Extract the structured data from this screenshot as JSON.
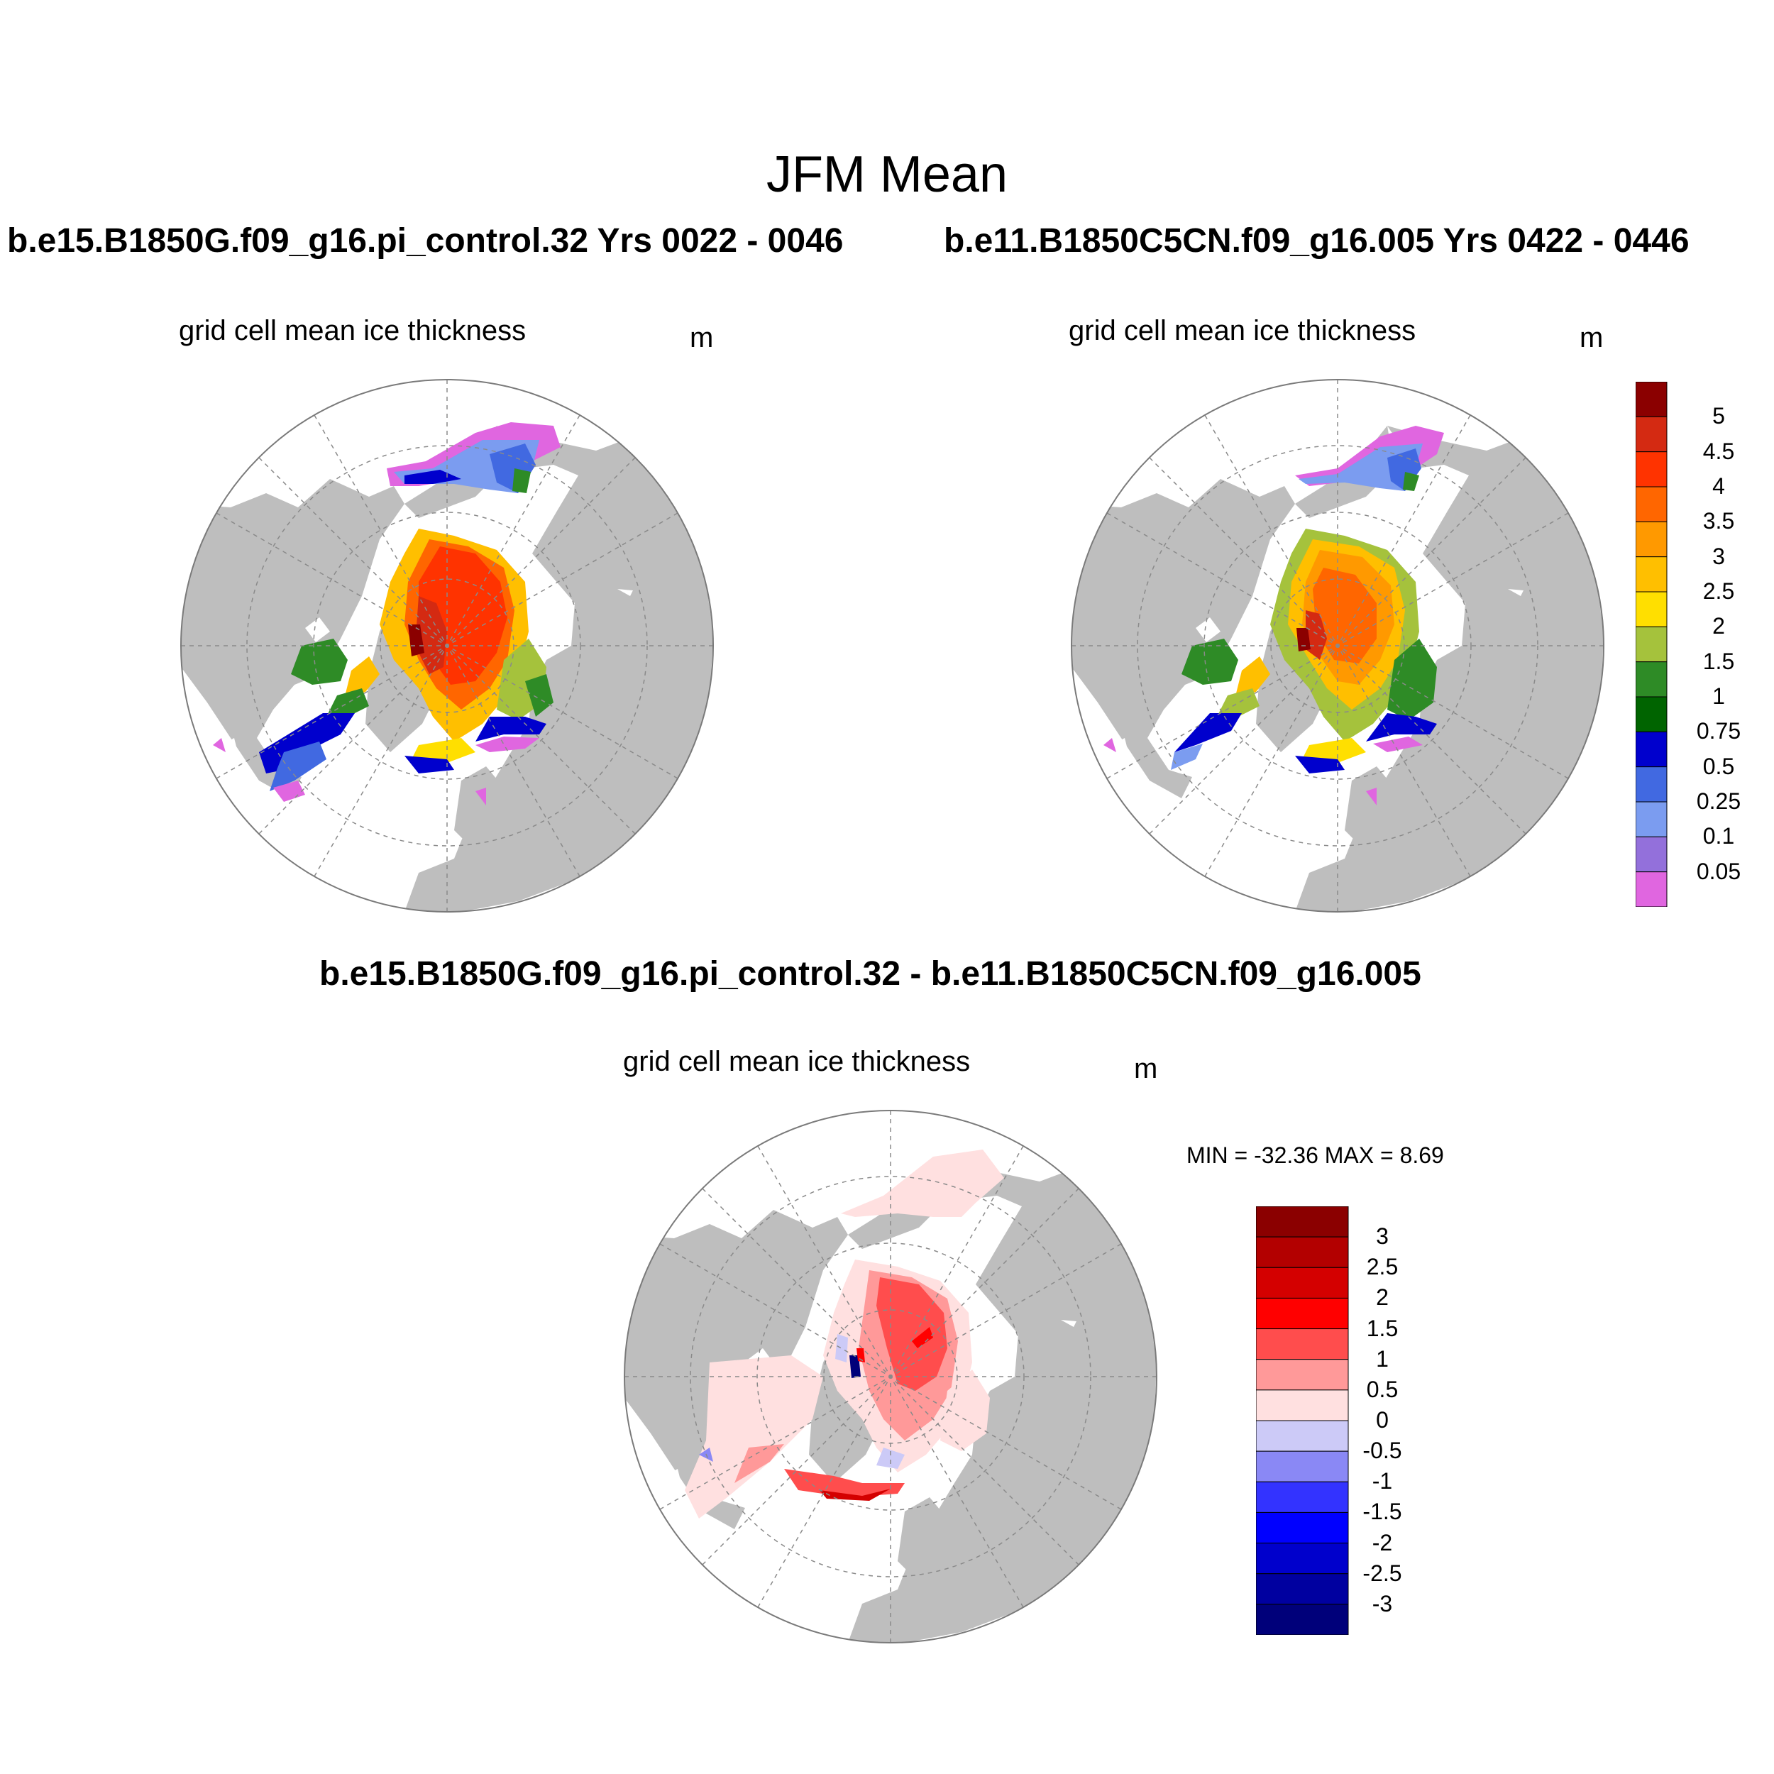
{
  "title": "JFM Mean",
  "panels": {
    "left": {
      "case": "b.e15.B1850G.f09_g16.pi_control.32  Yrs 0022 - 0046",
      "variable": "grid cell mean ice thickness",
      "units": "m"
    },
    "right": {
      "case": "b.e11.B1850C5CN.f09_g16.005  Yrs 0422 - 0446",
      "variable": "grid cell mean ice thickness",
      "units": "m"
    },
    "diff": {
      "case": "b.e15.B1850G.f09_g16.pi_control.32 - b.e11.B1850C5CN.f09_g16.005",
      "variable": "grid cell mean ice thickness",
      "units": "m",
      "minmax": "MIN = -32.36 MAX =   8.69"
    }
  },
  "colorbar_thickness": {
    "labels": [
      "5",
      "4.5",
      "4",
      "3.5",
      "3",
      "2.5",
      "2",
      "1.5",
      "1",
      "0.75",
      "0.5",
      "0.25",
      "0.1",
      "0.05"
    ],
    "colors": [
      "#8b0000",
      "#d42a12",
      "#ff3300",
      "#ff6600",
      "#ff9900",
      "#ffbf00",
      "#ffdf00",
      "#a5c23c",
      "#2e8b26",
      "#006400",
      "#0000cd",
      "#4169e1",
      "#7b9cf0",
      "#9370db",
      "#e066e0"
    ]
  },
  "colorbar_diff": {
    "labels": [
      "3",
      "2.5",
      "2",
      "1.5",
      "1",
      "0.5",
      "0",
      "-0.5",
      "-1",
      "-1.5",
      "-2",
      "-2.5",
      "-3"
    ],
    "colors": [
      "#8b0000",
      "#b30000",
      "#d40000",
      "#ff0000",
      "#ff4d4d",
      "#ff9999",
      "#ffe0e0",
      "#cccaf7",
      "#8a88f5",
      "#3333ff",
      "#0000ff",
      "#0000cc",
      "#0000a0",
      "#00007a"
    ]
  }
}
